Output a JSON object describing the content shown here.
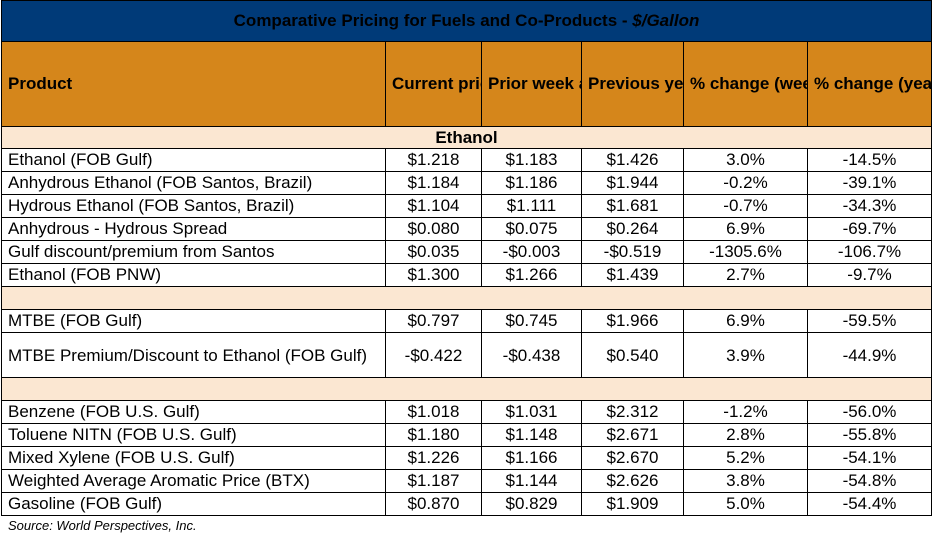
{
  "title": {
    "main": "Comparative Pricing for Fuels and Co-Products - ",
    "unit": "$/Gallon"
  },
  "headers": {
    "product": "Product",
    "current": "Current price",
    "prior": "Prior week average",
    "previous": "Previous year",
    "wow": "% change (week over week)",
    "yoy": "% change (year over year)"
  },
  "section_ethanol": "Ethanol",
  "rows": [
    {
      "product": "Ethanol (FOB Gulf)",
      "current": "$1.218",
      "prior": "$1.183",
      "previous": "$1.426",
      "wow": "3.0%",
      "yoy": "-14.5%"
    },
    {
      "product": "Anhydrous Ethanol (FOB Santos, Brazil)",
      "current": "$1.184",
      "prior": "$1.186",
      "previous": "$1.944",
      "wow": "-0.2%",
      "yoy": "-39.1%"
    },
    {
      "product": "Hydrous Ethanol (FOB Santos, Brazil)",
      "current": "$1.104",
      "prior": "$1.111",
      "previous": "$1.681",
      "wow": "-0.7%",
      "yoy": "-34.3%"
    },
    {
      "product": "Anhydrous - Hydrous Spread",
      "current": "$0.080",
      "prior": "$0.075",
      "previous": "$0.264",
      "wow": "6.9%",
      "yoy": "-69.7%"
    },
    {
      "product": "Gulf discount/premium from Santos",
      "current": "$0.035",
      "prior": "-$0.003",
      "previous": "-$0.519",
      "wow": "-1305.6%",
      "yoy": "-106.7%"
    },
    {
      "product": "Ethanol (FOB PNW)",
      "current": "$1.300",
      "prior": "$1.266",
      "previous": "$1.439",
      "wow": "2.7%",
      "yoy": "-9.7%"
    },
    {
      "product": "MTBE (FOB Gulf)",
      "current": "$0.797",
      "prior": "$0.745",
      "previous": "$1.966",
      "wow": "6.9%",
      "yoy": "-59.5%"
    },
    {
      "product": "MTBE Premium/Discount to Ethanol (FOB Gulf)",
      "current": "-$0.422",
      "prior": "-$0.438",
      "previous": "$0.540",
      "wow": "3.9%",
      "yoy": "-44.9%"
    },
    {
      "product": "Benzene (FOB U.S. Gulf)",
      "current": "$1.018",
      "prior": "$1.031",
      "previous": "$2.312",
      "wow": "-1.2%",
      "yoy": "-56.0%"
    },
    {
      "product": "Toluene NITN (FOB U.S. Gulf)",
      "current": "$1.180",
      "prior": "$1.148",
      "previous": "$2.671",
      "wow": "2.8%",
      "yoy": "-55.8%"
    },
    {
      "product": "Mixed Xylene (FOB U.S. Gulf)",
      "current": "$1.226",
      "prior": "$1.166",
      "previous": "$2.670",
      "wow": "5.2%",
      "yoy": "-54.1%"
    },
    {
      "product": "Weighted Average Aromatic Price (BTX)",
      "current": "$1.187",
      "prior": "$1.144",
      "previous": "$2.626",
      "wow": "3.8%",
      "yoy": "-54.8%"
    },
    {
      "product": "Gasoline (FOB Gulf)",
      "current": "$0.870",
      "prior": "$0.829",
      "previous": "$1.909",
      "wow": "5.0%",
      "yoy": "-54.4%"
    }
  ],
  "source": "Source: World Perspectives, Inc.",
  "colors": {
    "title_bg": "#003a78",
    "header_bg": "#d5861b",
    "section_bg": "#fbe7d2"
  }
}
